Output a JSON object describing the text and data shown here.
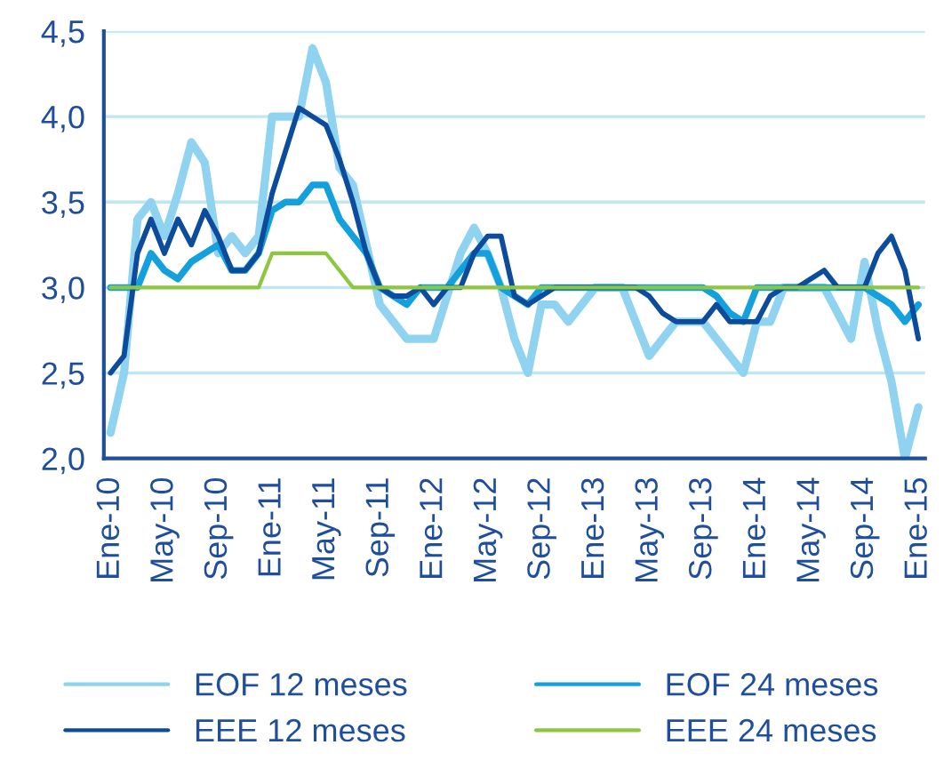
{
  "chart_data": {
    "type": "line",
    "categories": [
      "Ene-10",
      null,
      null,
      null,
      "May-10",
      null,
      null,
      null,
      "Sep-10",
      null,
      null,
      null,
      "Ene-11",
      null,
      null,
      null,
      "May-11",
      null,
      null,
      null,
      "Sep-11",
      null,
      null,
      null,
      "Ene-12",
      null,
      null,
      null,
      "May-12",
      null,
      null,
      null,
      "Sep-12",
      null,
      null,
      null,
      "Ene-13",
      null,
      null,
      null,
      "May-13",
      null,
      null,
      null,
      "Sep-13",
      null,
      null,
      null,
      "Ene-14",
      null,
      null,
      null,
      "May-14",
      null,
      null,
      null,
      "Sep-14",
      null,
      null,
      null,
      "Ene-15"
    ],
    "series": [
      {
        "name": "EOF 12 meses",
        "color": "#8fd3f0",
        "values": [
          2.15,
          2.5,
          3.4,
          3.5,
          3.3,
          3.55,
          3.85,
          3.73,
          3.2,
          3.3,
          3.2,
          3.3,
          4.0,
          4.0,
          4.0,
          4.4,
          4.2,
          3.7,
          3.6,
          3.25,
          2.9,
          2.8,
          2.7,
          2.7,
          2.7,
          2.95,
          3.2,
          3.35,
          3.2,
          3.0,
          2.7,
          2.5,
          2.9,
          2.9,
          2.8,
          2.9,
          3.0,
          3.0,
          3.0,
          2.8,
          2.6,
          2.7,
          2.8,
          2.8,
          2.8,
          2.7,
          2.6,
          2.5,
          2.8,
          2.8,
          3.0,
          3.0,
          3.0,
          3.0,
          2.85,
          2.7,
          3.15,
          2.75,
          2.45,
          2.0,
          2.3
        ]
      },
      {
        "name": "EOF 24 meses",
        "color": "#14a0dc",
        "values": [
          3.0,
          3.0,
          3.0,
          3.2,
          3.1,
          3.05,
          3.15,
          3.2,
          3.25,
          3.1,
          3.1,
          3.2,
          3.45,
          3.5,
          3.5,
          3.6,
          3.6,
          3.4,
          3.3,
          3.2,
          3.0,
          2.95,
          2.9,
          3.0,
          3.0,
          3.0,
          3.1,
          3.2,
          3.2,
          3.0,
          2.95,
          2.9,
          3.0,
          3.0,
          3.0,
          3.0,
          3.0,
          3.0,
          3.0,
          3.0,
          3.0,
          3.0,
          3.0,
          3.0,
          3.0,
          2.95,
          2.85,
          2.8,
          3.0,
          3.0,
          3.0,
          3.0,
          3.0,
          3.0,
          3.0,
          3.0,
          3.0,
          2.95,
          2.9,
          2.8,
          2.9
        ]
      },
      {
        "name": "EEE 12 meses",
        "color": "#0d4c9c",
        "values": [
          2.5,
          2.6,
          3.2,
          3.4,
          3.2,
          3.4,
          3.25,
          3.45,
          3.3,
          3.1,
          3.1,
          3.2,
          3.55,
          3.8,
          4.05,
          4.0,
          3.95,
          3.75,
          3.5,
          3.2,
          3.0,
          2.95,
          2.95,
          3.0,
          2.9,
          3.0,
          3.0,
          3.2,
          3.3,
          3.3,
          2.95,
          2.9,
          2.95,
          3.0,
          3.0,
          3.0,
          3.0,
          3.0,
          3.0,
          3.0,
          2.95,
          2.85,
          2.8,
          2.8,
          2.8,
          2.9,
          2.8,
          2.8,
          2.8,
          2.95,
          3.0,
          3.0,
          3.05,
          3.1,
          3.0,
          3.0,
          3.0,
          3.2,
          3.3,
          3.1,
          2.7
        ]
      },
      {
        "name": "EEE 24 meses",
        "color": "#8dc63f",
        "values": [
          3.0,
          3.0,
          3.0,
          3.0,
          3.0,
          3.0,
          3.0,
          3.0,
          3.0,
          3.0,
          3.0,
          3.0,
          3.2,
          3.2,
          3.2,
          3.2,
          3.2,
          3.1,
          3.0,
          3.0,
          3.0,
          3.0,
          3.0,
          3.0,
          3.0,
          3.0,
          3.0,
          3.0,
          3.0,
          3.0,
          3.0,
          3.0,
          3.0,
          3.0,
          3.0,
          3.0,
          3.0,
          3.0,
          3.0,
          3.0,
          3.0,
          3.0,
          3.0,
          3.0,
          3.0,
          3.0,
          3.0,
          3.0,
          3.0,
          3.0,
          3.0,
          3.0,
          3.0,
          3.0,
          3.0,
          3.0,
          3.0,
          3.0,
          3.0,
          3.0,
          3.0
        ]
      }
    ],
    "ylim": [
      2.0,
      4.5
    ],
    "yticks": [
      {
        "value": 2.0,
        "label": "2,0"
      },
      {
        "value": 2.5,
        "label": "2,5"
      },
      {
        "value": 3.0,
        "label": "3,0"
      },
      {
        "value": 3.5,
        "label": "3,5"
      },
      {
        "value": 4.0,
        "label": "4,0"
      },
      {
        "value": 4.5,
        "label": "4,5"
      }
    ],
    "grid": "y",
    "legend": "bottom",
    "marker": "none",
    "line_style": "solid"
  }
}
